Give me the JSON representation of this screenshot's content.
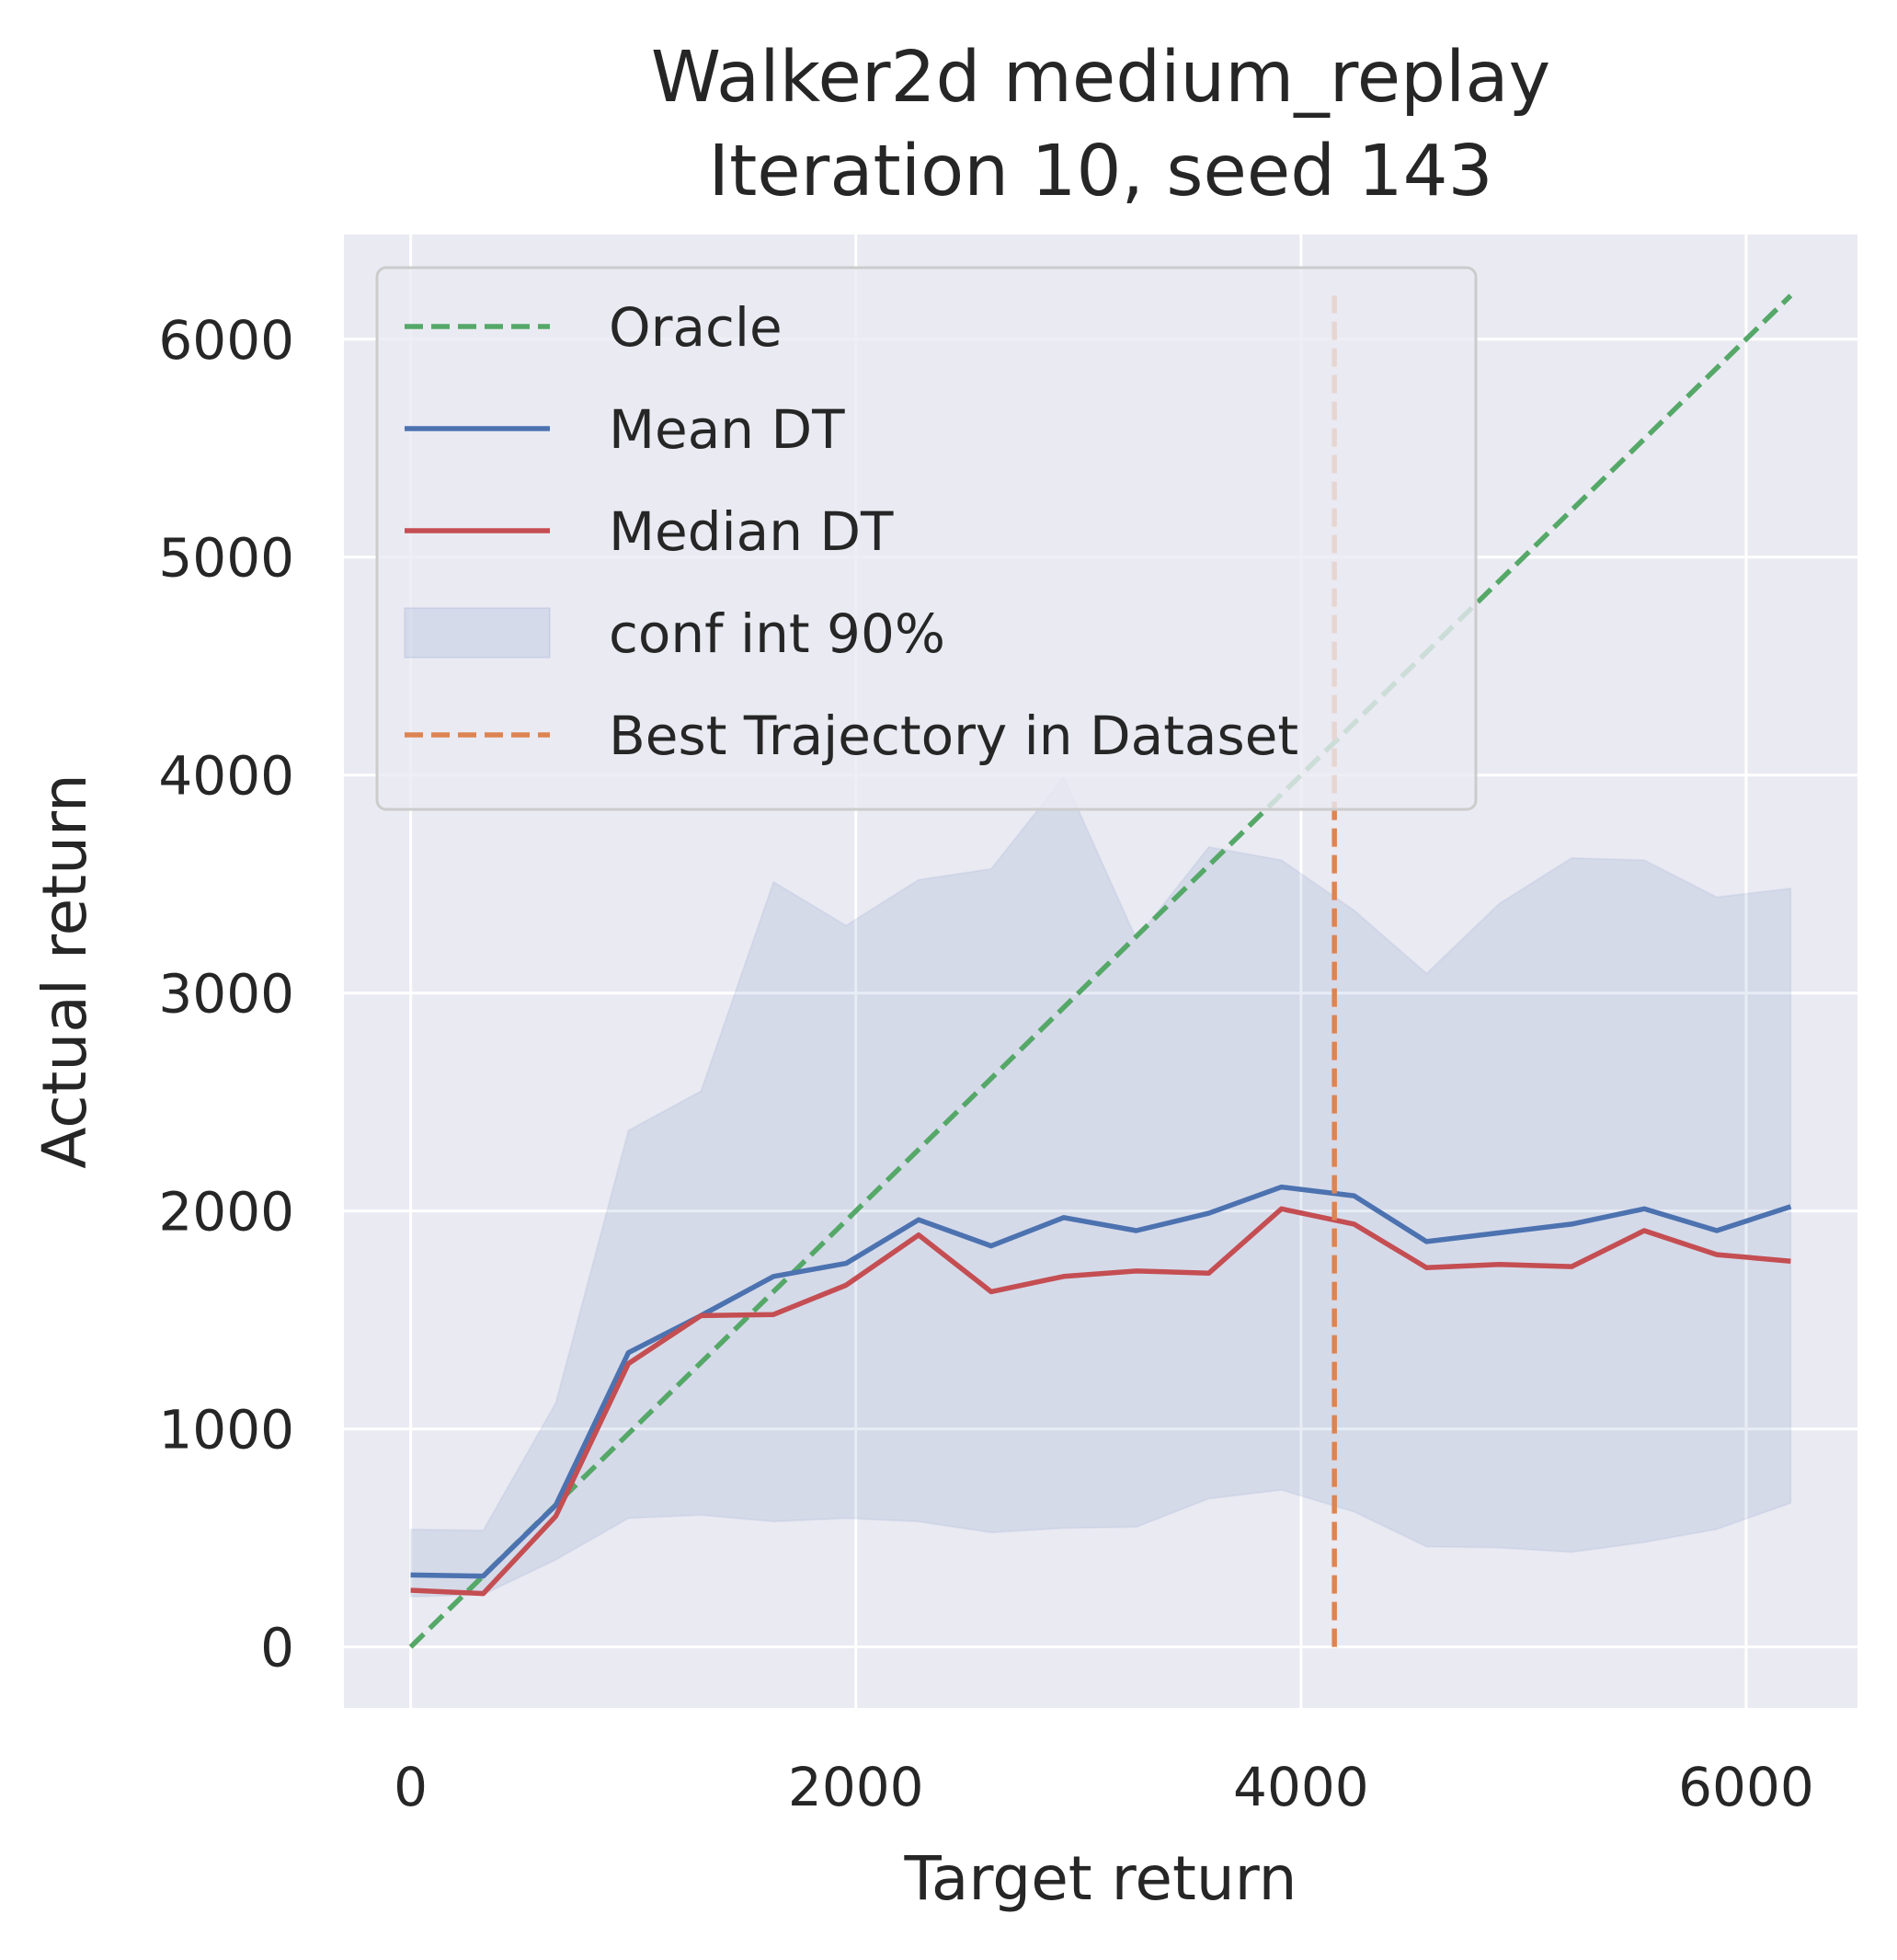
{
  "chart_data": {
    "type": "line",
    "title": "Walker2d medium_replay",
    "subtitle": "Iteration 10, seed 143",
    "xlabel": "Target return",
    "ylabel": "Actual return",
    "xlim": [
      -300,
      6500
    ],
    "ylim": [
      -280,
      6480
    ],
    "xticks": [
      0,
      2000,
      4000,
      6000
    ],
    "xtick_labels": [
      "0",
      "2000",
      "4000",
      "6000"
    ],
    "yticks": [
      0,
      1000,
      2000,
      3000,
      4000,
      5000,
      6000
    ],
    "ytick_labels": [
      "0",
      "1000",
      "2000",
      "3000",
      "4000",
      "5000",
      "6000"
    ],
    "grid": true,
    "legend_position": "top-left",
    "x": [
      0,
      326,
      652,
      978,
      1304,
      1630,
      1956,
      2282,
      2608,
      2934,
      3260,
      3586,
      3912,
      4238,
      4564,
      4890,
      5216,
      5542,
      5868,
      6200
    ],
    "series": [
      {
        "name": "Oracle",
        "kind": "line",
        "style": "dashed",
        "color": "#55a868",
        "x": [
          0,
          6200
        ],
        "values": [
          0,
          6200
        ]
      },
      {
        "name": "Mean DT",
        "kind": "line",
        "style": "solid",
        "color": "#4c72b0",
        "values": [
          330,
          325,
          650,
          1350,
          1520,
          1700,
          1760,
          1960,
          1840,
          1970,
          1910,
          1990,
          2110,
          2070,
          1860,
          1900,
          1940,
          2010,
          1910,
          2020
        ]
      },
      {
        "name": "Median DT",
        "kind": "line",
        "style": "solid",
        "color": "#c44e52",
        "values": [
          260,
          245,
          600,
          1300,
          1520,
          1525,
          1660,
          1890,
          1630,
          1700,
          1725,
          1715,
          2010,
          1940,
          1740,
          1755,
          1745,
          1910,
          1800,
          1770
        ]
      },
      {
        "name": "conf int 90%",
        "kind": "band",
        "color": "#4c72b0",
        "opacity": 0.13,
        "lower": [
          230,
          240,
          400,
          590,
          605,
          575,
          590,
          575,
          525,
          545,
          550,
          680,
          720,
          620,
          460,
          455,
          435,
          480,
          540,
          660
        ],
        "upper": [
          540,
          535,
          1120,
          2370,
          2550,
          3510,
          3310,
          3520,
          3570,
          3990,
          3250,
          3670,
          3610,
          3380,
          3090,
          3410,
          3620,
          3610,
          3440,
          3480
        ]
      },
      {
        "name": "Best Trajectory in Dataset",
        "kind": "vline",
        "style": "dashed",
        "color": "#dd8452",
        "x": 4150,
        "y_range": [
          0,
          6200
        ]
      }
    ],
    "legend": [
      "Oracle",
      "Mean DT",
      "Median DT",
      "conf int 90%",
      "Best Trajectory in Dataset"
    ]
  },
  "colors": {
    "axes_background": "#eaeaf2",
    "grid": "#ffffff",
    "text": "#262626"
  }
}
